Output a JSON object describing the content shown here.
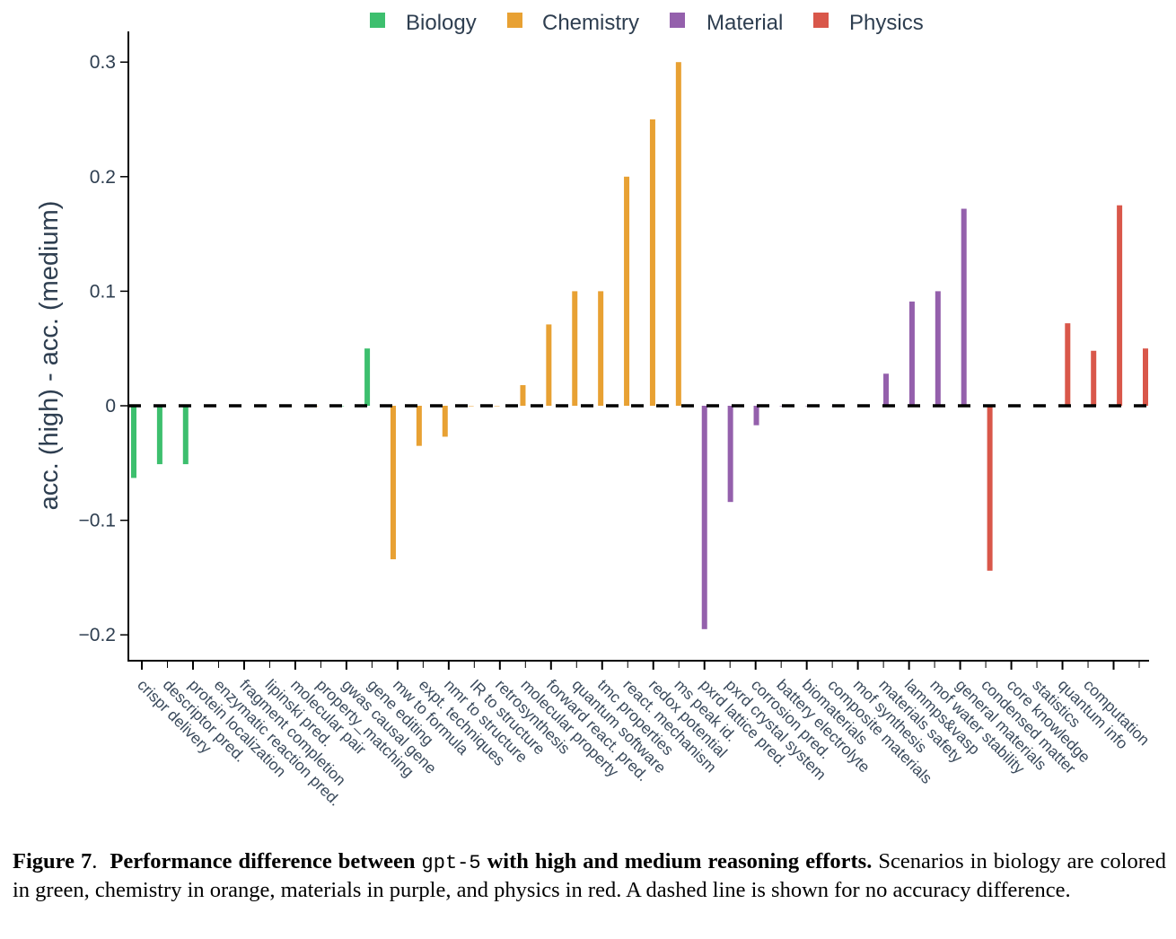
{
  "chart_data": {
    "type": "bar",
    "title": "",
    "xlabel": "",
    "ylabel": "acc. (high) - acc. (medium)",
    "ylim": [
      -0.225,
      0.33
    ],
    "yticks": [
      -0.2,
      -0.1,
      0,
      0.1,
      0.2,
      0.3
    ],
    "ytick_labels": [
      "−0.2",
      "−0.1",
      "0",
      "0.1",
      "0.2",
      "0.3"
    ],
    "grid": false,
    "legend_position": "top-center",
    "reference_line": {
      "y": 0,
      "style": "dashed",
      "color": "#000000",
      "meaning": "no accuracy difference"
    },
    "legend": [
      {
        "name": "Biology",
        "color": "#3dbf6e"
      },
      {
        "name": "Chemistry",
        "color": "#e8a133"
      },
      {
        "name": "Material",
        "color": "#9460ac"
      },
      {
        "name": "Physics",
        "color": "#d9574a"
      }
    ],
    "categories": [
      "crispr delivery",
      "descriptor pred.",
      "protein localization",
      "enzymatic reaction pred.",
      "fragment completion",
      "lipinski pred.",
      "molecular pair",
      "property_matching",
      "gwas causal gene",
      "gene editing",
      "mw to formula",
      "expt. techniques",
      "nmr to structure",
      "IR to structure",
      "retrosynthesis",
      "molecular property",
      "forward react. pred.",
      "quantum software",
      "tmc properties",
      "react. mechanism",
      "redox potential",
      "ms peak id.",
      "pxrd lattice pred.",
      "pxrd crystal system",
      "corrosion pred.",
      "battery electrolyte",
      "biomaterials",
      "composite materials",
      "mof synthesis",
      "materials safety",
      "lammps&vasp",
      "mof water stability",
      "general materials",
      "condensed matter",
      "core knowledge",
      "statistics",
      "quantum info",
      "computation",
      "",
      ""
    ],
    "domains": [
      "Biology",
      "Biology",
      "Biology",
      "Chemistry",
      "Chemistry",
      "Chemistry",
      "Chemistry",
      "Chemistry",
      "Biology",
      "Biology",
      "Chemistry",
      "Chemistry",
      "Chemistry",
      "Chemistry",
      "Chemistry",
      "Chemistry",
      "Chemistry",
      "Chemistry",
      "Chemistry",
      "Chemistry",
      "Chemistry",
      "Chemistry",
      "Material",
      "Material",
      "Material",
      "Material",
      "Material",
      "Material",
      "Material",
      "Material",
      "Material",
      "Material",
      "Material",
      "Physics",
      "Physics",
      "Physics",
      "Physics",
      "Physics",
      "Physics",
      "Physics"
    ],
    "values": [
      -0.063,
      -0.051,
      -0.051,
      0,
      0,
      0,
      0,
      0,
      0,
      0.05,
      -0.134,
      -0.035,
      -0.027,
      0,
      0,
      0.018,
      0.071,
      0.1,
      0.1,
      0.2,
      0.25,
      0.3,
      -0.195,
      -0.084,
      -0.017,
      0,
      0,
      0,
      0,
      0.028,
      0.091,
      0.1,
      0.172,
      -0.144,
      0,
      0,
      0.072,
      0.048,
      0.175,
      0.05
    ]
  },
  "caption": {
    "figure_label": "Figure 7",
    "title_before_code": "Performance difference between",
    "code": "gpt-5",
    "title_after_code": "with high and medium reasoning efforts.",
    "body": "Scenarios in biology are colored in green, chemistry in orange, materials in purple, and physics in red.  A dashed line is shown for no accuracy difference."
  }
}
